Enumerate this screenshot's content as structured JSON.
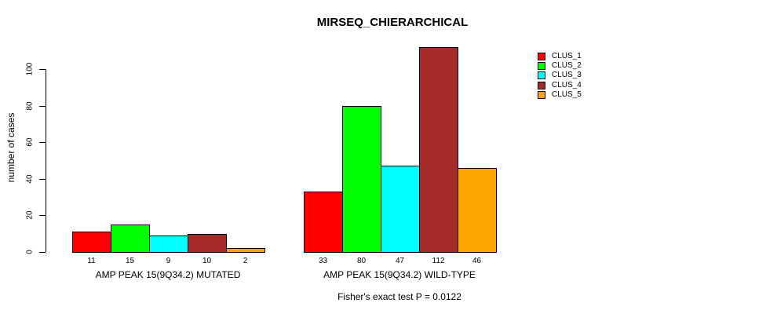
{
  "title": "MIRSEQ_CHIERARCHICAL",
  "footnote": "Fisher's exact test P = 0.0122",
  "chart_data": {
    "type": "bar",
    "title": "MIRSEQ_CHIERARCHICAL",
    "xlabel": "",
    "ylabel": "number of cases",
    "ylim": [
      0,
      112
    ],
    "yticks": [
      0,
      20,
      40,
      60,
      80,
      100
    ],
    "grid": false,
    "legend_position": "right",
    "categories": [
      "CLUS_1",
      "CLUS_2",
      "CLUS_3",
      "CLUS_4",
      "CLUS_5"
    ],
    "series_colors": [
      "#FF0000",
      "#00FF00",
      "#00FFFF",
      "#A52A2A",
      "#FFA500"
    ],
    "groups": [
      {
        "label": "AMP PEAK 15(9Q34.2) MUTATED",
        "values": [
          11,
          15,
          9,
          10,
          2
        ],
        "bar_labels": [
          "11",
          "15",
          "9",
          "10",
          "2"
        ]
      },
      {
        "label": "AMP PEAK 15(9Q34.2) WILD-TYPE",
        "values": [
          33,
          80,
          47,
          112,
          46
        ],
        "bar_labels": [
          "33",
          "80",
          "47",
          "112",
          "46"
        ]
      }
    ],
    "legend": [
      {
        "label": "CLUS_1",
        "color": "#FF0000"
      },
      {
        "label": "CLUS_2",
        "color": "#00FF00"
      },
      {
        "label": "CLUS_3",
        "color": "#00FFFF"
      },
      {
        "label": "CLUS_4",
        "color": "#A52A2A"
      },
      {
        "label": "CLUS_5",
        "color": "#FFA500"
      }
    ],
    "annotation": "Fisher's exact test P = 0.0122"
  }
}
